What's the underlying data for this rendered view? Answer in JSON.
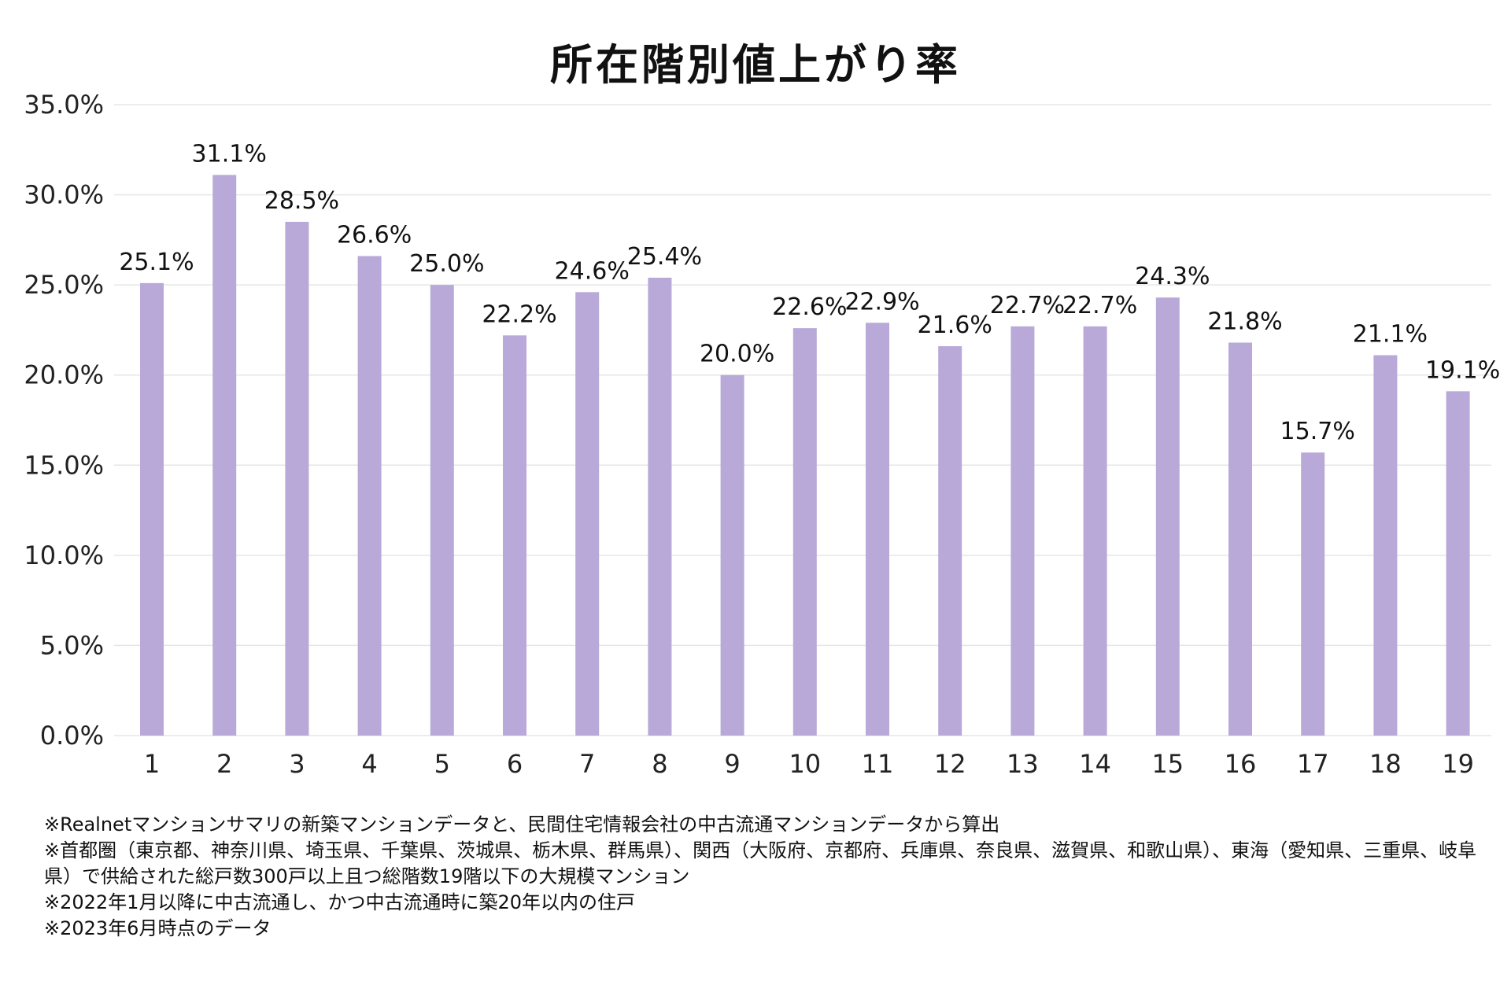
{
  "chart_data": {
    "type": "bar",
    "title": "所在階別値上がり率",
    "categories": [
      "1",
      "2",
      "3",
      "4",
      "5",
      "6",
      "7",
      "8",
      "9",
      "10",
      "11",
      "12",
      "13",
      "14",
      "15",
      "16",
      "17",
      "18",
      "19"
    ],
    "values": [
      25.1,
      31.1,
      28.5,
      26.6,
      25.0,
      22.2,
      24.6,
      25.4,
      20.0,
      22.6,
      22.9,
      21.6,
      22.7,
      22.7,
      24.3,
      21.8,
      15.7,
      21.1,
      19.1
    ],
    "value_labels": [
      "25.1%",
      "31.1%",
      "28.5%",
      "26.6%",
      "25.0%",
      "22.2%",
      "24.6%",
      "25.4%",
      "20.0%",
      "22.6%",
      "22.9%",
      "21.6%",
      "22.7%",
      "22.7%",
      "24.3%",
      "21.8%",
      "15.7%",
      "21.1%",
      "19.1%"
    ],
    "y_ticks": [
      "0.0%",
      "5.0%",
      "10.0%",
      "15.0%",
      "20.0%",
      "25.0%",
      "30.0%",
      "35.0%"
    ],
    "ylim": [
      0,
      35
    ],
    "xlabel": "",
    "ylabel": "",
    "grid": true,
    "bar_color": "#b9a9d9",
    "grid_color": "#e6e6e6"
  },
  "notes": [
    "※Realnetマンションサマリの新築マンションデータと、民間住宅情報会社の中古流通マンションデータから算出",
    "※首都圏（東京都、神奈川県、埼玉県、千葉県、茨城県、栃木県、群馬県）、関西（大阪府、京都府、兵庫県、奈良県、滋賀県、和歌山県）、東海（愛知県、三重県、岐阜",
    "県）で供給された総戸数300戸以上且つ総階数19階以下の大規模マンション",
    "※2022年1月以降に中古流通し、かつ中古流通時に築20年以内の住戸",
    "※2023年6月時点のデータ"
  ]
}
